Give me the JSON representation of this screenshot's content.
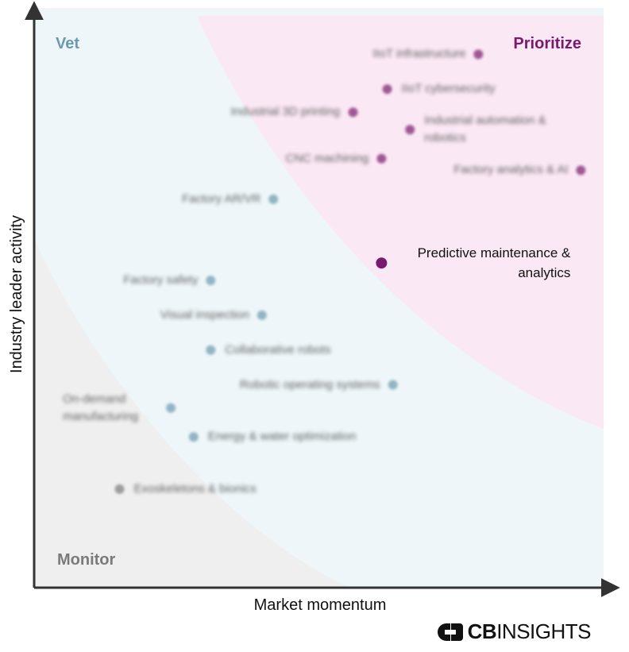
{
  "chart_data": {
    "type": "scatter",
    "xlabel": "Market momentum",
    "ylabel": "Industry leader activity",
    "zones": [
      {
        "name": "Vet",
        "color": "#6b9aad"
      },
      {
        "name": "Prioritize",
        "color": "#7a1a6e"
      },
      {
        "name": "Monitor",
        "color": "#7a7a7a"
      }
    ],
    "points": [
      {
        "label": "IIoT infrastructure",
        "zone": "Prioritize",
        "x": 0.78,
        "y": 0.92,
        "focus": false
      },
      {
        "label": "IIoT cybersecurity",
        "zone": "Prioritize",
        "x": 0.62,
        "y": 0.86,
        "focus": false
      },
      {
        "label": "Industrial 3D printing",
        "zone": "Prioritize",
        "x": 0.56,
        "y": 0.82,
        "focus": false
      },
      {
        "label": "Industrial automation & robotics",
        "zone": "Prioritize",
        "x": 0.66,
        "y": 0.79,
        "focus": false
      },
      {
        "label": "CNC machining",
        "zone": "Prioritize",
        "x": 0.61,
        "y": 0.74,
        "focus": false
      },
      {
        "label": "Factory analytics & AI",
        "zone": "Prioritize",
        "x": 0.96,
        "y": 0.72,
        "focus": false
      },
      {
        "label": "Factory AR/VR",
        "zone": "Vet",
        "x": 0.42,
        "y": 0.67,
        "focus": false
      },
      {
        "label": "Predictive maintenance & analytics",
        "zone": "Prioritize",
        "x": 0.61,
        "y": 0.56,
        "focus": true
      },
      {
        "label": "Factory safety",
        "zone": "Vet",
        "x": 0.31,
        "y": 0.53,
        "focus": false
      },
      {
        "label": "Visual inspection",
        "zone": "Vet",
        "x": 0.4,
        "y": 0.47,
        "focus": false
      },
      {
        "label": "Collaborative robots",
        "zone": "Vet",
        "x": 0.31,
        "y": 0.41,
        "focus": false
      },
      {
        "label": "Robotic operating systems",
        "zone": "Vet",
        "x": 0.63,
        "y": 0.35,
        "focus": false
      },
      {
        "label": "On-demand manufacturing",
        "zone": "Vet",
        "x": 0.24,
        "y": 0.31,
        "focus": false
      },
      {
        "label": "Energy & water optimization",
        "zone": "Vet",
        "x": 0.28,
        "y": 0.26,
        "focus": false
      },
      {
        "label": "Exoskeletons & bionics",
        "zone": "Monitor",
        "x": 0.15,
        "y": 0.17,
        "focus": false
      }
    ]
  },
  "logo": {
    "bold": "CB",
    "rest": "INSIGHTS"
  }
}
